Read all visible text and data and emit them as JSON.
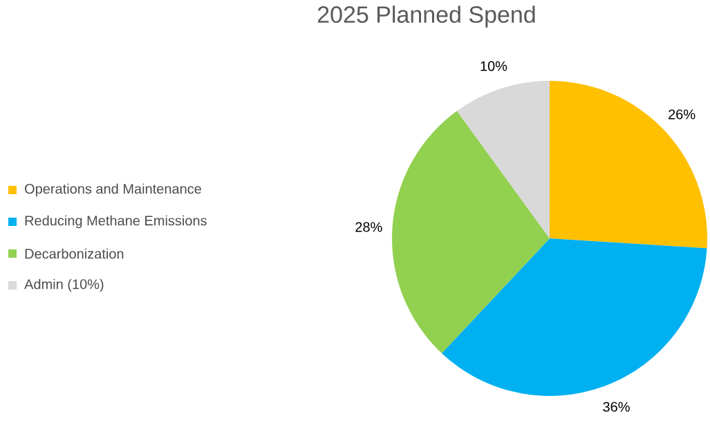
{
  "chart_data": {
    "type": "pie",
    "title": "2025 Planned Spend",
    "categories": [
      "Operations and Maintenance",
      "Reducing Methane Emissions",
      "Decarbonization",
      "Admin (10%)"
    ],
    "values": [
      26,
      36,
      28,
      10
    ],
    "colors": [
      "#ffc000",
      "#00b0f0",
      "#92d050",
      "#d9d9d9"
    ],
    "value_labels": [
      "26%",
      "36%",
      "28%",
      "10%"
    ],
    "legend": "left"
  }
}
